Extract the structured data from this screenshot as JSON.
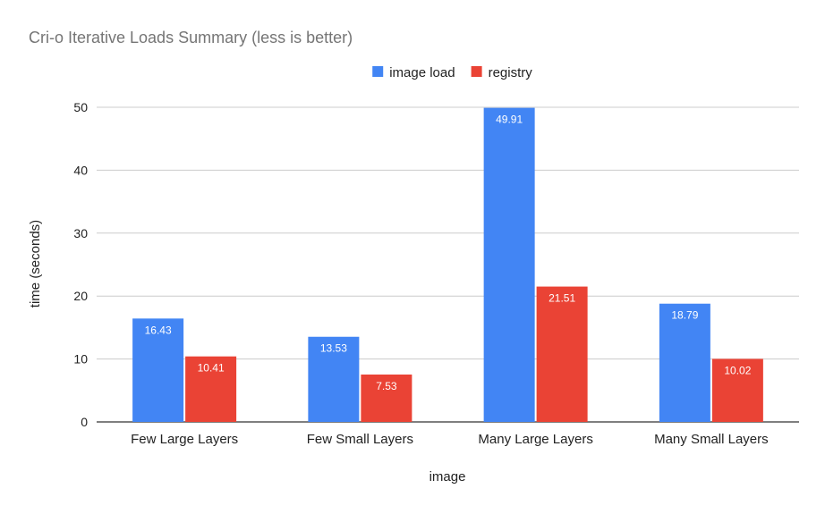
{
  "chart_data": {
    "type": "bar",
    "title": "Cri-o Iterative Loads Summary (less is better)",
    "xlabel": "image",
    "ylabel": "time (seconds)",
    "categories": [
      "Few Large Layers",
      "Few Small Layers",
      "Many Large Layers",
      "Many Small Layers"
    ],
    "series": [
      {
        "name": "image load",
        "color": "#4285f4",
        "values": [
          16.43,
          13.53,
          49.91,
          18.79
        ]
      },
      {
        "name": "registry",
        "color": "#ea4335",
        "values": [
          10.41,
          7.53,
          21.51,
          10.02
        ]
      }
    ],
    "ylim": [
      0,
      50
    ],
    "yticks": [
      0,
      10,
      20,
      30,
      40,
      50
    ],
    "grid": true,
    "legend_position": "top",
    "data_labels": true
  }
}
